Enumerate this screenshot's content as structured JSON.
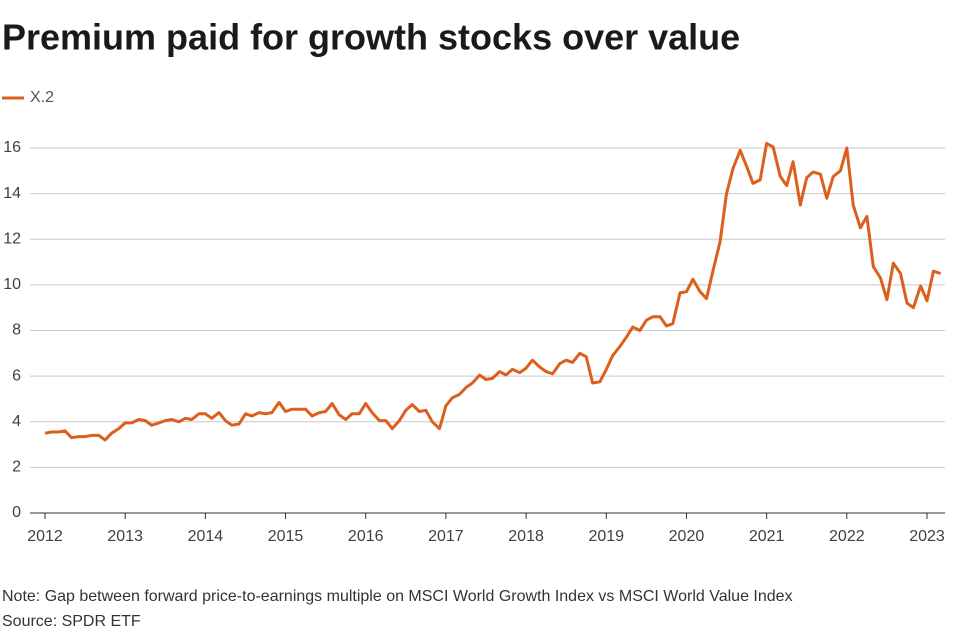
{
  "chart_data": {
    "type": "line",
    "title": "Premium paid for growth stocks over value",
    "note": "Note: Gap between forward price-to-earnings multiple on MSCI World Growth Index vs MSCI World Value Index",
    "source": "Source: SPDR ETF",
    "x": [
      2012.0,
      2012.08,
      2012.17,
      2012.25,
      2012.33,
      2012.42,
      2012.5,
      2012.58,
      2012.67,
      2012.75,
      2012.83,
      2012.92,
      2013.0,
      2013.08,
      2013.17,
      2013.25,
      2013.33,
      2013.42,
      2013.5,
      2013.58,
      2013.67,
      2013.75,
      2013.83,
      2013.92,
      2014.0,
      2014.08,
      2014.17,
      2014.25,
      2014.33,
      2014.42,
      2014.5,
      2014.58,
      2014.67,
      2014.75,
      2014.83,
      2014.92,
      2015.0,
      2015.08,
      2015.17,
      2015.25,
      2015.33,
      2015.42,
      2015.5,
      2015.58,
      2015.67,
      2015.75,
      2015.83,
      2015.92,
      2016.0,
      2016.08,
      2016.17,
      2016.25,
      2016.33,
      2016.42,
      2016.5,
      2016.58,
      2016.67,
      2016.75,
      2016.83,
      2016.92,
      2017.0,
      2017.08,
      2017.17,
      2017.25,
      2017.33,
      2017.42,
      2017.5,
      2017.58,
      2017.67,
      2017.75,
      2017.83,
      2017.92,
      2018.0,
      2018.08,
      2018.17,
      2018.25,
      2018.33,
      2018.42,
      2018.5,
      2018.58,
      2018.67,
      2018.75,
      2018.83,
      2018.92,
      2019.0,
      2019.08,
      2019.17,
      2019.25,
      2019.33,
      2019.42,
      2019.5,
      2019.58,
      2019.67,
      2019.75,
      2019.83,
      2019.92,
      2020.0,
      2020.08,
      2020.17,
      2020.25,
      2020.33,
      2020.42,
      2020.5,
      2020.58,
      2020.67,
      2020.75,
      2020.83,
      2020.92,
      2021.0,
      2021.08,
      2021.17,
      2021.25,
      2021.33,
      2021.42,
      2021.5,
      2021.58,
      2021.67,
      2021.75,
      2021.83,
      2021.92,
      2022.0,
      2022.08,
      2022.17,
      2022.25,
      2022.33,
      2022.42,
      2022.5,
      2022.58,
      2022.67,
      2022.75,
      2022.83,
      2022.92,
      2023.0,
      2023.08,
      2023.17
    ],
    "series": [
      {
        "name": "X.2",
        "color": "#dc5f1d",
        "values": [
          3.5,
          3.55,
          3.55,
          3.6,
          3.3,
          3.35,
          3.35,
          3.4,
          3.4,
          3.2,
          3.5,
          3.7,
          3.95,
          3.95,
          4.1,
          4.05,
          3.85,
          3.95,
          4.05,
          4.1,
          4.0,
          4.15,
          4.1,
          4.35,
          4.35,
          4.15,
          4.4,
          4.05,
          3.85,
          3.9,
          4.35,
          4.25,
          4.4,
          4.35,
          4.4,
          4.85,
          4.45,
          4.55,
          4.55,
          4.55,
          4.25,
          4.4,
          4.45,
          4.8,
          4.3,
          4.1,
          4.35,
          4.35,
          4.8,
          4.4,
          4.05,
          4.05,
          3.7,
          4.05,
          4.5,
          4.75,
          4.45,
          4.5,
          4.0,
          3.7,
          4.7,
          5.05,
          5.2,
          5.5,
          5.7,
          6.05,
          5.85,
          5.9,
          6.2,
          6.05,
          6.3,
          6.15,
          6.35,
          6.7,
          6.4,
          6.2,
          6.1,
          6.55,
          6.7,
          6.6,
          7.0,
          6.85,
          5.7,
          5.75,
          6.3,
          6.9,
          7.3,
          7.7,
          8.15,
          8.0,
          8.45,
          8.6,
          8.6,
          8.2,
          8.3,
          9.65,
          9.7,
          10.25,
          9.7,
          9.4,
          10.6,
          11.9,
          14.0,
          15.1,
          15.9,
          15.2,
          14.45,
          14.6,
          16.2,
          16.05,
          14.75,
          14.35,
          15.4,
          13.5,
          14.7,
          14.95,
          14.85,
          13.8,
          14.75,
          15.0,
          16.0,
          13.5,
          12.5,
          13.0,
          10.8,
          10.3,
          9.35,
          10.95,
          10.5,
          9.2,
          9.0,
          9.95,
          9.3,
          10.6,
          10.5
        ]
      }
    ],
    "xlim": [
      2012,
      2023
    ],
    "xticks": [
      2012,
      2013,
      2014,
      2015,
      2016,
      2017,
      2018,
      2019,
      2020,
      2021,
      2022,
      2023
    ],
    "ylim": [
      0,
      16
    ],
    "yticks": [
      0,
      2,
      4,
      6,
      8,
      10,
      12,
      14,
      16
    ],
    "grid": true
  }
}
